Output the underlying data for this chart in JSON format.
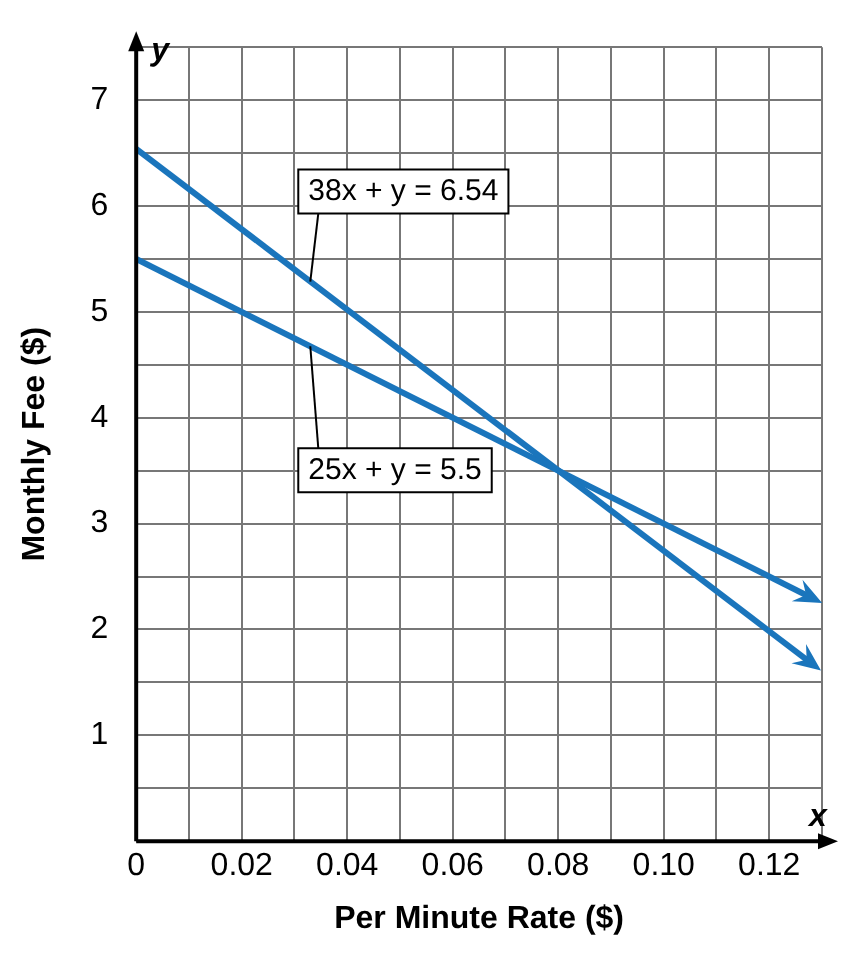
{
  "chart_data": {
    "type": "line",
    "xlabel": "Per Minute Rate ($)",
    "ylabel": "Monthly Fee ($)",
    "series": [
      {
        "color": "#1a75bc",
        "values": [
          6.54,
          1.68
        ]
      },
      {
        "color": "#1a75bc",
        "values": [
          5.5,
          2.3
        ]
      }
    ],
    "x": [
      0,
      0.128
    ],
    "xlim": [
      0,
      0.13
    ],
    "ylim": [
      0,
      7.5
    ],
    "xticks": [
      0,
      {
        "value": 0.01,
        "label": null
      },
      0.02,
      {
        "value": 0.03,
        "label": null
      },
      0.04,
      {
        "value": 0.05,
        "label": null
      },
      0.06,
      {
        "value": 0.07,
        "label": null
      },
      0.08,
      {
        "value": 0.09,
        "label": null
      },
      {
        "value": 0.1,
        "label": "0.10"
      },
      {
        "value": 0.11,
        "label": null
      },
      0.12,
      {
        "value": 0.13,
        "label": null
      }
    ],
    "yticks": [
      {
        "value": 0,
        "label": null
      },
      {
        "value": 0.5,
        "label": null
      },
      1,
      {
        "value": 1.5,
        "label": null
      },
      2,
      {
        "value": 2.5,
        "label": null
      },
      3,
      {
        "value": 3.5,
        "label": null
      },
      4,
      {
        "value": 4.5,
        "label": null
      },
      5,
      {
        "value": 5.5,
        "label": null
      },
      6,
      {
        "value": 6.5,
        "label": null
      },
      7,
      {
        "value": 7.5,
        "label": null
      }
    ],
    "grid": true,
    "legend": false,
    "line_style": "solid",
    "annotations": [
      {
        "text": "38x + y = 6.54",
        "x": 0.033,
        "y": 5.286
      },
      {
        "text": "25x + y = 5.5",
        "x": 0.033,
        "y": 4.675
      },
      "x",
      "y"
    ]
  }
}
